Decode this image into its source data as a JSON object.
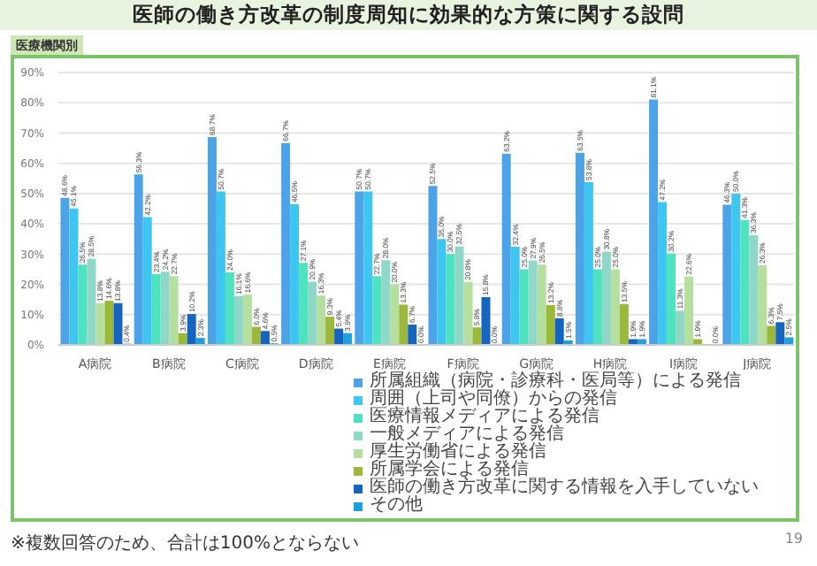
{
  "chart_data": {
    "type": "bar",
    "title": "医師の働き方改革の制度周知に効果的な方策に関する設問",
    "subtitle": "医療機関別",
    "categories": [
      "A病院",
      "B病院",
      "C病院",
      "D病院",
      "E病院",
      "F病院",
      "G病院",
      "H病院",
      "I病院",
      "J病院"
    ],
    "series": [
      {
        "name": "所属組織（病院・診療科・医局等）による発信",
        "color": "#4da3e8",
        "values": [
          48.6,
          56.3,
          68.7,
          66.7,
          50.7,
          52.5,
          63.2,
          63.5,
          81.1,
          46.3
        ],
        "value_labels": [
          "48.6%",
          "56.3%",
          "68.7%",
          "66.7%",
          "50.7%",
          "52.5%",
          "63.2%",
          "63.5%",
          "81.1%",
          "46.3%"
        ]
      },
      {
        "name": "周囲（上司や同僚）からの発信",
        "color": "#3fc6f0",
        "values": [
          45.1,
          42.2,
          50.7,
          46.5,
          50.7,
          35.0,
          32.4,
          53.8,
          47.2,
          50.0
        ],
        "value_labels": [
          "45.1%",
          "42.2%",
          "50.7%",
          "46.5%",
          "50.7%",
          "35.0%",
          "32.4%",
          "53.8%",
          "47.2%",
          "50.0%"
        ]
      },
      {
        "name": "医療情報メディアによる発信",
        "color": "#4de3c0",
        "values": [
          26.5,
          23.4,
          24.0,
          27.1,
          22.7,
          30.0,
          25.0,
          25.0,
          30.2,
          41.3
        ],
        "value_labels": [
          "26.5%",
          "23.4%",
          "24.0%",
          "27.1%",
          "22.7%",
          "30.0%",
          "25.0%",
          "25.0%",
          "30.2%",
          "41.3%"
        ]
      },
      {
        "name": "一般メディアによる発信",
        "color": "#8fd8c8",
        "values": [
          28.5,
          24.2,
          16.1,
          20.9,
          28.0,
          32.5,
          27.9,
          30.8,
          11.3,
          36.3
        ],
        "value_labels": [
          "28.5%",
          "24.2%",
          "16.1%",
          "20.9%",
          "28.0%",
          "32.5%",
          "27.9%",
          "30.8%",
          "11.3%",
          "36.3%"
        ]
      },
      {
        "name": "厚生労働省による発信",
        "color": "#b5df9f",
        "values": [
          13.8,
          22.7,
          16.6,
          16.3,
          20.0,
          20.8,
          26.5,
          25.0,
          22.6,
          26.3
        ],
        "value_labels": [
          "13.8%",
          "22.7%",
          "16.6%",
          "16.3%",
          "20.0%",
          "20.8%",
          "26.5%",
          "25.0%",
          "22.6%",
          "26.3%"
        ]
      },
      {
        "name": "所属学会による発信",
        "color": "#9cb83a",
        "values": [
          14.6,
          3.9,
          6.0,
          9.3,
          13.3,
          5.8,
          13.2,
          13.5,
          1.9,
          6.3
        ],
        "value_labels": [
          "14.6%",
          "3.9%",
          "6.0%",
          "9.3%",
          "13.3%",
          "5.8%",
          "13.2%",
          "13.5%",
          "1.9%",
          "6.3%"
        ]
      },
      {
        "name": "医師の働き方改革に関する情報を入手していない",
        "color": "#1565c0",
        "values": [
          13.8,
          10.2,
          4.6,
          5.4,
          6.7,
          15.8,
          8.8,
          1.9,
          0.0,
          7.5
        ],
        "value_labels": [
          "13.8%",
          "10.2%",
          "4.6%",
          "5.4%",
          "6.7%",
          "15.8%",
          "8.8%",
          "1.9%",
          null,
          "7.5%"
        ]
      },
      {
        "name": "その他",
        "color": "#1f9fe0",
        "values": [
          0.4,
          2.3,
          0.5,
          3.9,
          0.0,
          0.0,
          1.5,
          1.9,
          0.0,
          2.5
        ],
        "value_labels": [
          "0.4%",
          "2.3%",
          "0.5%",
          "3.9%",
          "0.0%",
          "0.0%",
          "1.5%",
          "1.9%",
          "0.0%",
          "2.5%"
        ]
      }
    ],
    "ylim": [
      0,
      90
    ],
    "yticks": [
      {
        "value": 0,
        "label": "0%"
      },
      {
        "value": 10,
        "label": "10%"
      },
      {
        "value": 20,
        "label": "20%"
      },
      {
        "value": 30,
        "label": "30%"
      },
      {
        "value": 40,
        "label": "40%"
      },
      {
        "value": 50,
        "label": "50%"
      },
      {
        "value": 60,
        "label": "60%"
      },
      {
        "value": 70,
        "label": "70%"
      },
      {
        "value": 80,
        "label": "80%"
      },
      {
        "value": 90,
        "label": "90%"
      }
    ],
    "grid": "y",
    "legend": "bottom",
    "annotations": [
      "※複数回答のため、合計は100%とならない",
      "19"
    ]
  }
}
